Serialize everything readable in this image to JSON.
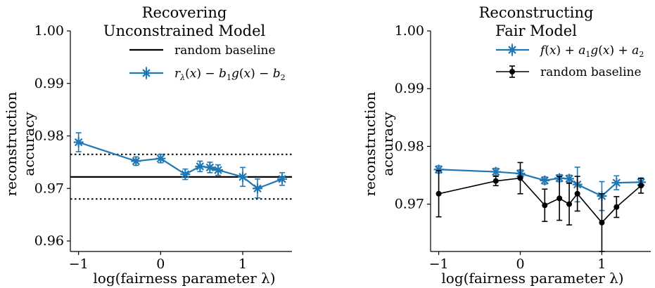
{
  "chart_data": [
    {
      "type": "line",
      "title": [
        "Recovering",
        "Unconstrained Model"
      ],
      "xlabel": "log(fairness parameter λ)",
      "ylabel": [
        "reconstruction",
        "accuracy"
      ],
      "xlim": [
        -1.1,
        1.6
      ],
      "ylim": [
        0.958,
        1.0
      ],
      "xticks": [
        -1,
        0,
        1
      ],
      "xtick_labels": [
        "−1",
        "0",
        "1"
      ],
      "yticks": [
        0.96,
        0.97,
        0.98,
        0.99,
        1.0
      ],
      "ytick_labels": [
        "0.96",
        "0.97",
        "0.98",
        "0.99",
        "1.00"
      ],
      "grid": false,
      "legend_position": "top-right",
      "baseline": {
        "name": "random baseline",
        "y": 0.9722,
        "band": [
          0.968,
          0.9765
        ],
        "color": "#000000"
      },
      "series": [
        {
          "name": "r_λ(x) − b_1 g(x) − b_2",
          "color": "#1f77b4",
          "marker": "asterisk",
          "x": [
            -1.0,
            -0.3,
            0.0,
            0.3,
            0.48,
            0.6,
            0.7,
            1.0,
            1.18,
            1.48
          ],
          "y": [
            0.9788,
            0.9752,
            0.9757,
            0.9727,
            0.9742,
            0.974,
            0.9735,
            0.9722,
            0.97,
            0.9718
          ],
          "yerr": [
            0.0018,
            0.0008,
            0.0008,
            0.001,
            0.001,
            0.001,
            0.001,
            0.0018,
            0.0018,
            0.0012
          ]
        }
      ]
    },
    {
      "type": "line",
      "title": [
        "Reconstructing",
        "Fair Model"
      ],
      "xlabel": "log(fairness parameter λ)",
      "ylabel": [
        "reconstruction",
        "accuracy"
      ],
      "xlim": [
        -1.1,
        1.6
      ],
      "ylim": [
        0.9618,
        1.0
      ],
      "xticks": [
        -1,
        0,
        1
      ],
      "xtick_labels": [
        "−1",
        "0",
        "1"
      ],
      "yticks": [
        0.97,
        0.98,
        0.99,
        1.0
      ],
      "ytick_labels": [
        "0.97",
        "0.98",
        "0.99",
        "1.00"
      ],
      "grid": false,
      "legend_position": "top-right",
      "series": [
        {
          "name": "f(x) + a_1 g(x) + a_2",
          "color": "#1f77b4",
          "marker": "asterisk",
          "x": [
            -1.0,
            -0.3,
            0.0,
            0.3,
            0.48,
            0.6,
            0.7,
            1.0,
            1.18,
            1.48
          ],
          "y": [
            0.976,
            0.9756,
            0.9753,
            0.9741,
            0.9745,
            0.9744,
            0.9734,
            0.9714,
            0.9737,
            0.9738
          ],
          "yerr": [
            0.0006,
            0.0006,
            0.0006,
            0.0006,
            0.0006,
            0.0006,
            0.003,
            0.0025,
            0.0012,
            0.0006
          ]
        },
        {
          "name": "random baseline",
          "color": "#000000",
          "marker": "circle",
          "x": [
            -1.0,
            -0.3,
            0.0,
            0.3,
            0.48,
            0.6,
            0.7,
            1.0,
            1.18,
            1.48
          ],
          "y": [
            0.9718,
            0.974,
            0.9745,
            0.9698,
            0.971,
            0.97,
            0.9718,
            0.9668,
            0.9695,
            0.9732
          ],
          "yerr": [
            0.004,
            0.0008,
            0.0027,
            0.0028,
            0.0038,
            0.0036,
            0.003,
            0.005,
            0.0018,
            0.0013
          ]
        }
      ]
    }
  ]
}
